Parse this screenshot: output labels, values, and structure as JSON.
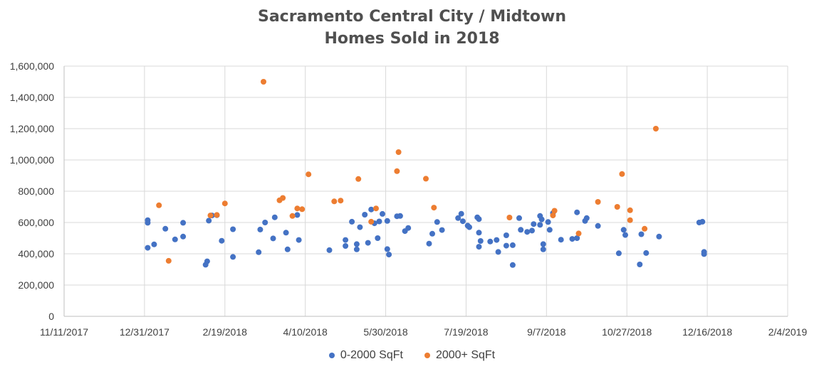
{
  "chart_data": {
    "type": "scatter",
    "title": [
      "Sacramento Central City / Midtown",
      "Homes Sold in 2018"
    ],
    "xlabel": "",
    "ylabel": "",
    "x_axis": {
      "type": "date",
      "min": "2017-11-11",
      "max": "2019-02-04",
      "tick_labels": [
        "11/11/2017",
        "12/31/2017",
        "2/19/2018",
        "4/10/2018",
        "5/30/2018",
        "7/19/2018",
        "9/7/2018",
        "10/27/2018",
        "12/16/2018",
        "2/4/2019"
      ]
    },
    "y_axis": {
      "min": 0,
      "max": 1600000,
      "tick_labels": [
        "0",
        "200,000",
        "400,000",
        "600,000",
        "800,000",
        "1,000,000",
        "1,200,000",
        "1,400,000",
        "1,600,000"
      ]
    },
    "grid": true,
    "legend_position": "bottom",
    "series": [
      {
        "name": "0-2000 SqFt",
        "color": "#4472c4",
        "points": [
          [
            "2018-01-02",
            615000
          ],
          [
            "2018-01-02",
            598000
          ],
          [
            "2018-01-02",
            438000
          ],
          [
            "2018-01-06",
            460000
          ],
          [
            "2018-01-13",
            560000
          ],
          [
            "2018-01-19",
            492000
          ],
          [
            "2018-01-24",
            598000
          ],
          [
            "2018-01-24",
            510000
          ],
          [
            "2018-02-07",
            330000
          ],
          [
            "2018-02-08",
            352000
          ],
          [
            "2018-02-09",
            612000
          ],
          [
            "2018-02-11",
            645000
          ],
          [
            "2018-02-14",
            647000
          ],
          [
            "2018-02-17",
            483000
          ],
          [
            "2018-02-24",
            557000
          ],
          [
            "2018-02-24",
            380000
          ],
          [
            "2018-03-12",
            410000
          ],
          [
            "2018-03-13",
            555000
          ],
          [
            "2018-03-16",
            600000
          ],
          [
            "2018-03-21",
            498000
          ],
          [
            "2018-03-22",
            633000
          ],
          [
            "2018-03-29",
            535000
          ],
          [
            "2018-03-30",
            428000
          ],
          [
            "2018-04-05",
            648000
          ],
          [
            "2018-04-06",
            488000
          ],
          [
            "2018-04-25",
            423000
          ],
          [
            "2018-05-05",
            488000
          ],
          [
            "2018-05-05",
            450000
          ],
          [
            "2018-05-09",
            605000
          ],
          [
            "2018-05-12",
            462000
          ],
          [
            "2018-05-12",
            428000
          ],
          [
            "2018-05-14",
            570000
          ],
          [
            "2018-05-17",
            650000
          ],
          [
            "2018-05-19",
            470000
          ],
          [
            "2018-05-21",
            683000
          ],
          [
            "2018-05-23",
            595000
          ],
          [
            "2018-05-25",
            500000
          ],
          [
            "2018-05-26",
            607000
          ],
          [
            "2018-05-28",
            655000
          ],
          [
            "2018-05-31",
            610000
          ],
          [
            "2018-05-31",
            430000
          ],
          [
            "2018-06-01",
            395000
          ],
          [
            "2018-06-06",
            640000
          ],
          [
            "2018-06-08",
            642000
          ],
          [
            "2018-06-11",
            545000
          ],
          [
            "2018-06-13",
            565000
          ],
          [
            "2018-06-26",
            465000
          ],
          [
            "2018-06-28",
            528000
          ],
          [
            "2018-07-01",
            603000
          ],
          [
            "2018-07-04",
            552000
          ],
          [
            "2018-07-14",
            628000
          ],
          [
            "2018-07-16",
            656000
          ],
          [
            "2018-07-17",
            608000
          ],
          [
            "2018-07-20",
            580000
          ],
          [
            "2018-07-21",
            570000
          ],
          [
            "2018-07-26",
            633000
          ],
          [
            "2018-07-27",
            622000
          ],
          [
            "2018-07-27",
            535000
          ],
          [
            "2018-07-27",
            445000
          ],
          [
            "2018-07-28",
            482000
          ],
          [
            "2018-08-03",
            478000
          ],
          [
            "2018-08-07",
            488000
          ],
          [
            "2018-08-08",
            412000
          ],
          [
            "2018-08-13",
            518000
          ],
          [
            "2018-08-13",
            452000
          ],
          [
            "2018-08-17",
            455000
          ],
          [
            "2018-08-17",
            328000
          ],
          [
            "2018-08-21",
            628000
          ],
          [
            "2018-08-22",
            553000
          ],
          [
            "2018-08-26",
            540000
          ],
          [
            "2018-08-29",
            548000
          ],
          [
            "2018-08-30",
            590000
          ],
          [
            "2018-09-03",
            642000
          ],
          [
            "2018-09-03",
            585000
          ],
          [
            "2018-09-04",
            620000
          ],
          [
            "2018-09-05",
            462000
          ],
          [
            "2018-09-05",
            428000
          ],
          [
            "2018-09-08",
            603000
          ],
          [
            "2018-09-09",
            553000
          ],
          [
            "2018-09-11",
            660000
          ],
          [
            "2018-09-16",
            490000
          ],
          [
            "2018-09-23",
            495000
          ],
          [
            "2018-09-26",
            500000
          ],
          [
            "2018-09-26",
            665000
          ],
          [
            "2018-10-01",
            610000
          ],
          [
            "2018-10-02",
            628000
          ],
          [
            "2018-10-09",
            578000
          ],
          [
            "2018-10-22",
            403000
          ],
          [
            "2018-10-25",
            553000
          ],
          [
            "2018-10-26",
            520000
          ],
          [
            "2018-11-04",
            332000
          ],
          [
            "2018-11-05",
            525000
          ],
          [
            "2018-11-08",
            405000
          ],
          [
            "2018-11-16",
            510000
          ],
          [
            "2018-12-11",
            600000
          ],
          [
            "2018-12-13",
            605000
          ],
          [
            "2018-12-14",
            398000
          ],
          [
            "2018-12-14",
            412000
          ]
        ]
      },
      {
        "name": "2000+ SqFt",
        "color": "#ed7d31",
        "points": [
          [
            "2018-01-09",
            710000
          ],
          [
            "2018-01-15",
            355000
          ],
          [
            "2018-02-10",
            645000
          ],
          [
            "2018-02-14",
            648000
          ],
          [
            "2018-02-19",
            722000
          ],
          [
            "2018-03-15",
            1500000
          ],
          [
            "2018-03-25",
            742000
          ],
          [
            "2018-03-27",
            757000
          ],
          [
            "2018-04-02",
            642000
          ],
          [
            "2018-04-05",
            690000
          ],
          [
            "2018-04-08",
            685000
          ],
          [
            "2018-04-12",
            908000
          ],
          [
            "2018-04-28",
            735000
          ],
          [
            "2018-05-02",
            740000
          ],
          [
            "2018-05-13",
            878000
          ],
          [
            "2018-05-21",
            605000
          ],
          [
            "2018-05-24",
            690000
          ],
          [
            "2018-06-06",
            928000
          ],
          [
            "2018-06-07",
            1050000
          ],
          [
            "2018-06-24",
            880000
          ],
          [
            "2018-06-29",
            695000
          ],
          [
            "2018-08-15",
            632000
          ],
          [
            "2018-09-11",
            645000
          ],
          [
            "2018-09-12",
            675000
          ],
          [
            "2018-09-27",
            530000
          ],
          [
            "2018-10-09",
            732000
          ],
          [
            "2018-10-21",
            700000
          ],
          [
            "2018-10-24",
            910000
          ],
          [
            "2018-10-29",
            678000
          ],
          [
            "2018-10-29",
            615000
          ],
          [
            "2018-11-07",
            560000
          ],
          [
            "2018-11-14",
            1200000
          ]
        ]
      }
    ]
  }
}
